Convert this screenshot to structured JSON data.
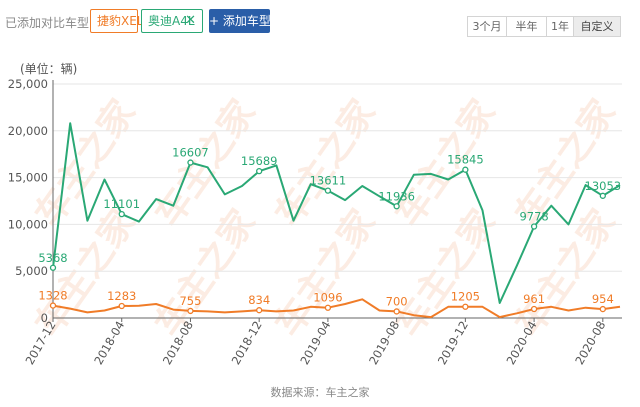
{
  "toolbar": {
    "prompt": "已添加对比车型:",
    "tags": [
      {
        "label": "捷豹XEL",
        "color": "#f07c28"
      },
      {
        "label": "奥迪A4L",
        "color": "#2aa875",
        "close_icon": "close-icon"
      }
    ],
    "add_button": "+ 添加车型",
    "ranges": [
      "3个月",
      "半年",
      "1年",
      "自定义"
    ],
    "active_range": "自定义"
  },
  "watermark": "车主之家",
  "source": "数据来源：车主之家",
  "chart_data": {
    "type": "line",
    "unit_label": "(单位：辆)",
    "x": [
      "2017-12",
      "2018-01",
      "2018-02",
      "2018-03",
      "2018-04",
      "2018-05",
      "2018-06",
      "2018-07",
      "2018-08",
      "2018-09",
      "2018-10",
      "2018-11",
      "2018-12",
      "2019-01",
      "2019-02",
      "2019-03",
      "2019-04",
      "2019-05",
      "2019-06",
      "2019-07",
      "2019-08",
      "2019-09",
      "2019-10",
      "2019-11",
      "2019-12",
      "2020-01",
      "2020-02",
      "2020-03",
      "2020-04",
      "2020-05",
      "2020-06",
      "2020-07",
      "2020-08",
      "2020-09"
    ],
    "x_tick_labels": [
      "2017-12",
      "2018-04",
      "2018-08",
      "2018-12",
      "2019-04",
      "2019-08",
      "2019-12",
      "2020-04",
      "2020-08"
    ],
    "ylim": [
      0,
      25000
    ],
    "y_ticks": [
      "0",
      "5,000",
      "10,000",
      "15,000",
      "20,000",
      "25,000"
    ],
    "series": [
      {
        "name": "奥迪A4L",
        "color": "#2aa875",
        "values": [
          5368,
          20800,
          10400,
          14800,
          11101,
          10300,
          12700,
          12000,
          16607,
          16100,
          13200,
          14100,
          15689,
          16300,
          10400,
          14300,
          13611,
          12600,
          14100,
          13000,
          11936,
          15300,
          15400,
          14800,
          15845,
          11500,
          1600,
          5600,
          9778,
          12000,
          10000,
          14200,
          13053,
          14200
        ],
        "labels": {
          "0": "5368",
          "4": "11101",
          "8": "16607",
          "12": "15689",
          "16": "13611",
          "20": "11936",
          "24": "15845",
          "28": "9778",
          "32": "13053"
        }
      },
      {
        "name": "捷豹XEL",
        "color": "#f07c28",
        "values": [
          1328,
          1000,
          600,
          800,
          1283,
          1300,
          1500,
          900,
          755,
          700,
          600,
          700,
          834,
          700,
          800,
          1200,
          1096,
          1500,
          2000,
          800,
          700,
          300,
          100,
          1200,
          1205,
          1200,
          100,
          500,
          961,
          1200,
          800,
          1100,
          954,
          1200
        ],
        "labels": {
          "0": "1328",
          "4": "1283",
          "8": "755",
          "12": "834",
          "16": "1096",
          "20": "700",
          "24": "1205",
          "28": "961",
          "32": "954"
        }
      }
    ]
  }
}
